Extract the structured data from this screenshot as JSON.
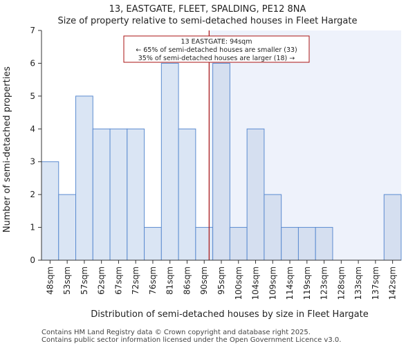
{
  "chart_data": {
    "type": "bar",
    "title_line1": "13, EASTGATE, FLEET, SPALDING, PE12 8NA",
    "title_line2": "Size of property relative to semi-detached houses in Fleet Hargate",
    "xlabel": "Distribution of semi-detached houses by size in Fleet Hargate",
    "ylabel": "Number of semi-detached properties",
    "categories": [
      "48sqm",
      "53sqm",
      "57sqm",
      "62sqm",
      "67sqm",
      "72sqm",
      "76sqm",
      "81sqm",
      "86sqm",
      "90sqm",
      "95sqm",
      "100sqm",
      "104sqm",
      "109sqm",
      "114sqm",
      "119sqm",
      "123sqm",
      "128sqm",
      "133sqm",
      "137sqm",
      "142sqm"
    ],
    "values": [
      3,
      2,
      5,
      4,
      4,
      4,
      1,
      6,
      4,
      1,
      6,
      1,
      4,
      2,
      1,
      1,
      1,
      0,
      0,
      0,
      2
    ],
    "ylim": [
      0,
      7
    ],
    "yticks": [
      "0",
      "1",
      "2",
      "3",
      "4",
      "5",
      "6",
      "7"
    ],
    "marker": {
      "value_sqm": 94,
      "line1": "13 EASTGATE: 94sqm",
      "line2": "← 65% of semi-detached houses are smaller (33)",
      "line3": "35% of semi-detached houses are larger (18) →"
    },
    "grid": false,
    "colors": {
      "bar_left": "#dae5f4",
      "bar_right": "#d5dff0",
      "bar_edge": "#5b8bd0",
      "highlight_region": "#eef2fb",
      "marker_line": "#aa1111"
    }
  },
  "footer": {
    "line1": "Contains HM Land Registry data © Crown copyright and database right 2025.",
    "line2": "Contains public sector information licensed under the Open Government Licence v3.0."
  }
}
